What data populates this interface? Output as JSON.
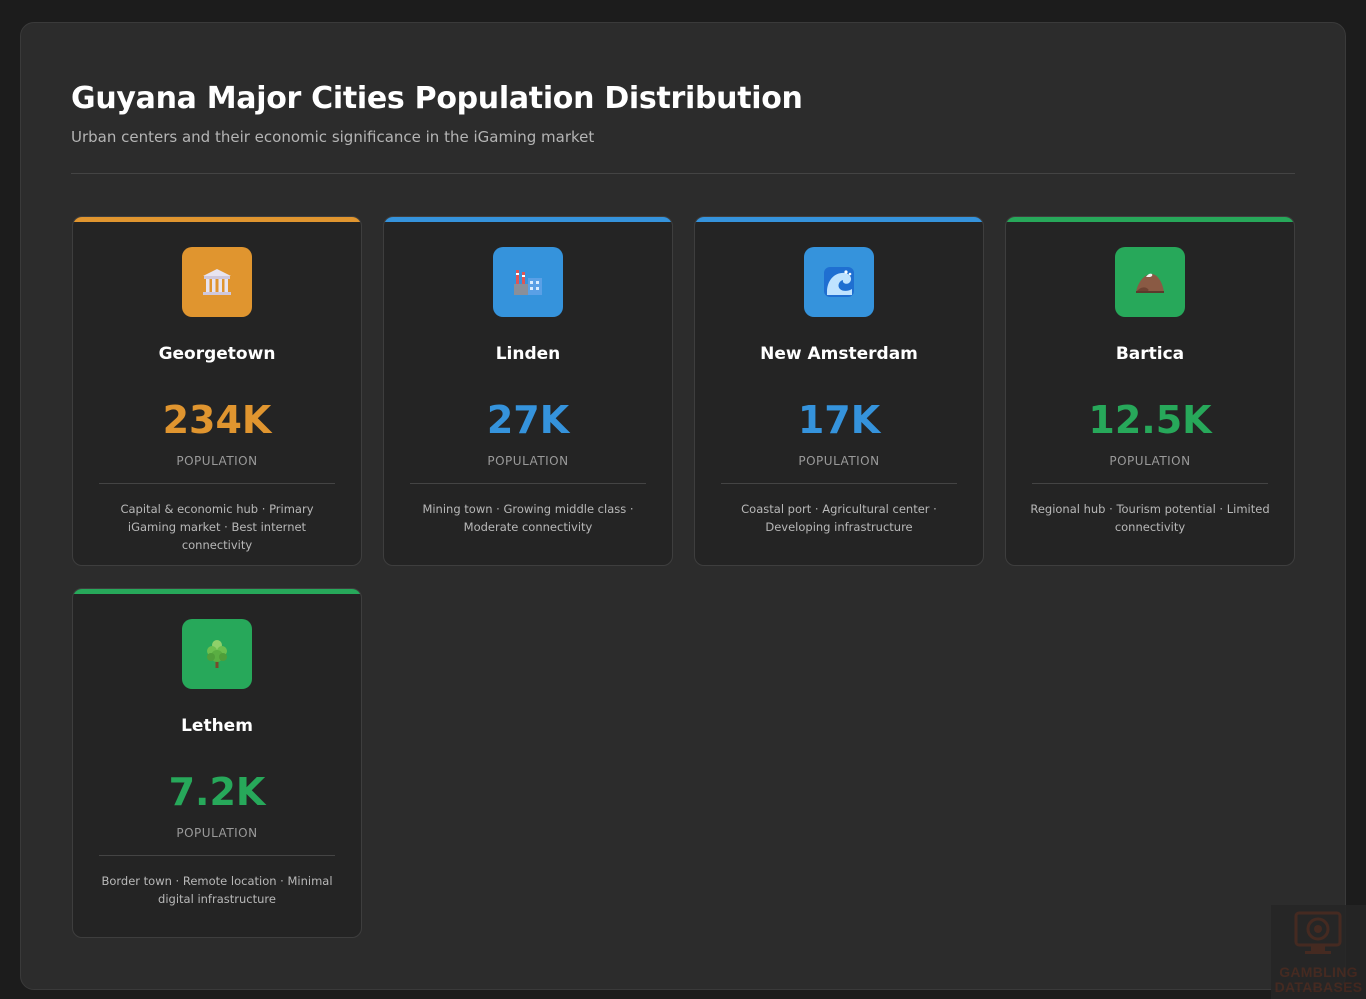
{
  "header": {
    "title": "Guyana Major Cities Population Distribution",
    "subtitle": "Urban centers and their economic significance in the iGaming market"
  },
  "cities": [
    {
      "name": "Georgetown",
      "value": "234K",
      "label": "POPULATION",
      "description": "Capital & economic hub · Primary iGaming market · Best internet connectivity",
      "accent": "#e0952f",
      "icon": "classical-building-icon"
    },
    {
      "name": "Linden",
      "value": "27K",
      "label": "POPULATION",
      "description": "Mining town · Growing middle class · Moderate connectivity",
      "accent": "#3593dc",
      "icon": "factory-icon"
    },
    {
      "name": "New Amsterdam",
      "value": "17K",
      "label": "POPULATION",
      "description": "Coastal port · Agricultural center · Developing infrastructure",
      "accent": "#3593dc",
      "icon": "wave-icon"
    },
    {
      "name": "Bartica",
      "value": "12.5K",
      "label": "POPULATION",
      "description": "Regional hub · Tourism potential · Limited connectivity",
      "accent": "#27a85a",
      "icon": "mountain-icon"
    },
    {
      "name": "Lethem",
      "value": "7.2K",
      "label": "POPULATION",
      "description": "Border town · Remote location · Minimal digital infrastructure",
      "accent": "#27a85a",
      "icon": "tree-icon"
    }
  ],
  "watermark": {
    "line1": "GAMBLING",
    "line2": "DATABASES"
  }
}
